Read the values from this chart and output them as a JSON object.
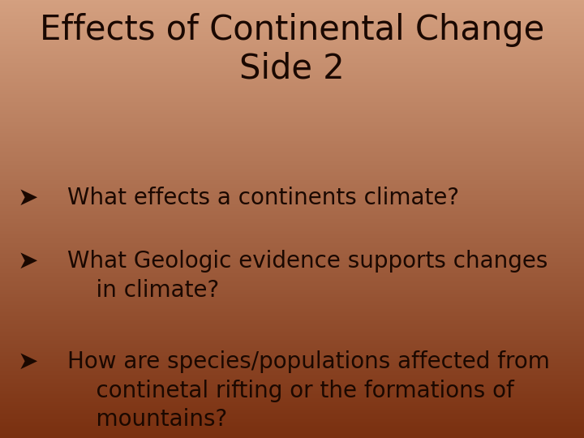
{
  "title_line1": "Effects of Continental Change",
  "title_line2": "Side 2",
  "bullet_symbol": "Ø",
  "bullet_texts": [
    "What effects a continents climate?",
    "What Geologic evidence supports changes\n    in climate?",
    "How are species/populations affected from\n    continetal rifting or the formations of\n    mountains?"
  ],
  "bg_color_top": "#d4a080",
  "bg_color_bottom": "#7a3010",
  "text_color": "#1a0800",
  "title_fontsize": 30,
  "bullet_fontsize": 20,
  "figsize": [
    7.2,
    5.4
  ],
  "dpi": 100
}
